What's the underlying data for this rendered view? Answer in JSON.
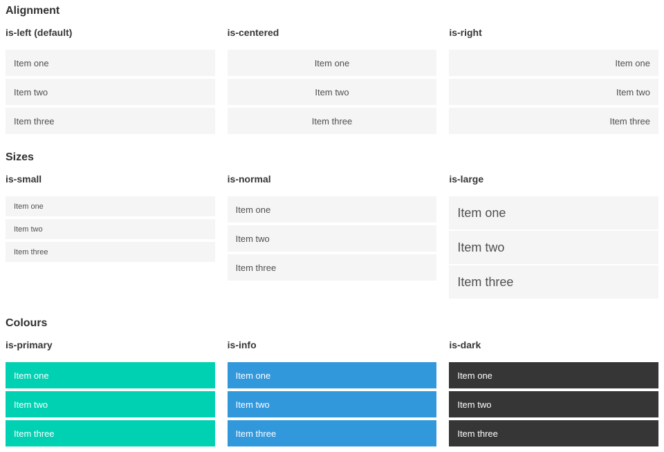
{
  "sections": [
    {
      "title": "Alignment",
      "groups": [
        {
          "label": "is-left (default)",
          "items": [
            "Item one",
            "Item two",
            "Item three"
          ]
        },
        {
          "label": "is-centered",
          "items": [
            "Item one",
            "Item two",
            "Item three"
          ]
        },
        {
          "label": "is-right",
          "items": [
            "Item one",
            "Item two",
            "Item three"
          ]
        }
      ]
    },
    {
      "title": "Sizes",
      "groups": [
        {
          "label": "is-small",
          "items": [
            "Item one",
            "Item two",
            "Item three"
          ]
        },
        {
          "label": "is-normal",
          "items": [
            "Item one",
            "Item two",
            "Item three"
          ]
        },
        {
          "label": "is-large",
          "items": [
            "Item one",
            "Item two",
            "Item three"
          ]
        }
      ]
    },
    {
      "title": "Colours",
      "groups": [
        {
          "label": "is-primary",
          "items": [
            "Item one",
            "Item two",
            "Item three"
          ]
        },
        {
          "label": "is-info",
          "items": [
            "Item one",
            "Item two",
            "Item three"
          ]
        },
        {
          "label": "is-dark",
          "items": [
            "Item one",
            "Item two",
            "Item three"
          ]
        }
      ]
    }
  ],
  "colors": {
    "item_background": "#f5f5f5",
    "item_text": "#4f4f4f",
    "heading_text": "#2f2f2f",
    "primary": "#00d1b2",
    "info": "#3298dc",
    "dark": "#363636",
    "on_color_text": "#ffffff"
  }
}
